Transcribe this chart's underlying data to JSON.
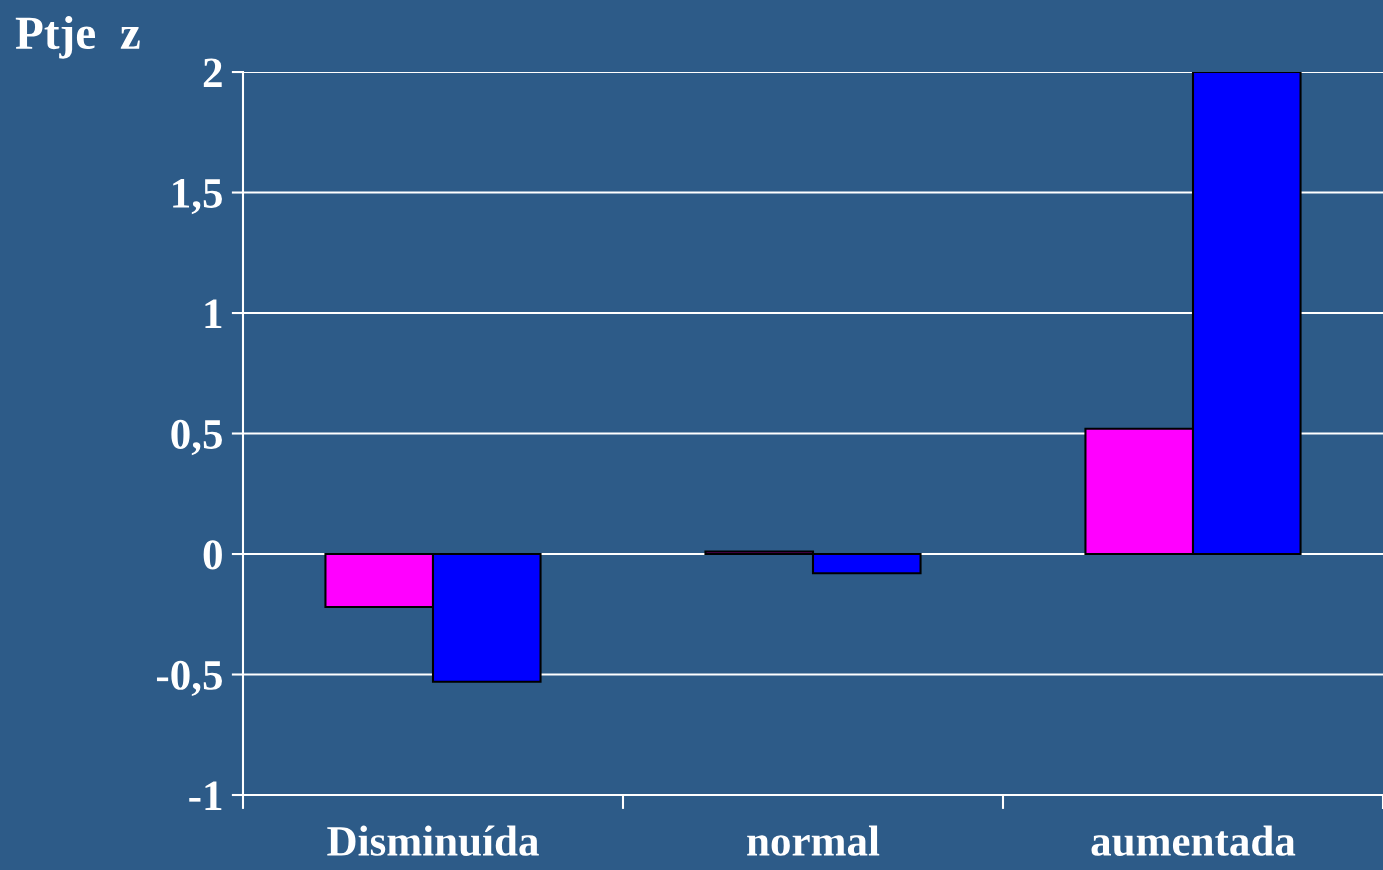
{
  "chart_data": {
    "type": "bar",
    "ylabel": "Ptje  z",
    "categories": [
      "Disminuída",
      "normal",
      "aumentada"
    ],
    "series": [
      {
        "color": "#ff00ff",
        "values": [
          -0.22,
          0.01,
          0.52
        ]
      },
      {
        "color": "#0000ff",
        "values": [
          -0.53,
          -0.08,
          2.0
        ]
      }
    ],
    "ylim": [
      -1,
      2
    ],
    "yticks": [
      -1,
      {
        "value": -0.5,
        "label": "-0,5"
      },
      0,
      {
        "value": 0.5,
        "label": "0,5"
      },
      1,
      {
        "value": 1.5,
        "label": "1,5"
      },
      2
    ],
    "grid": "y"
  }
}
